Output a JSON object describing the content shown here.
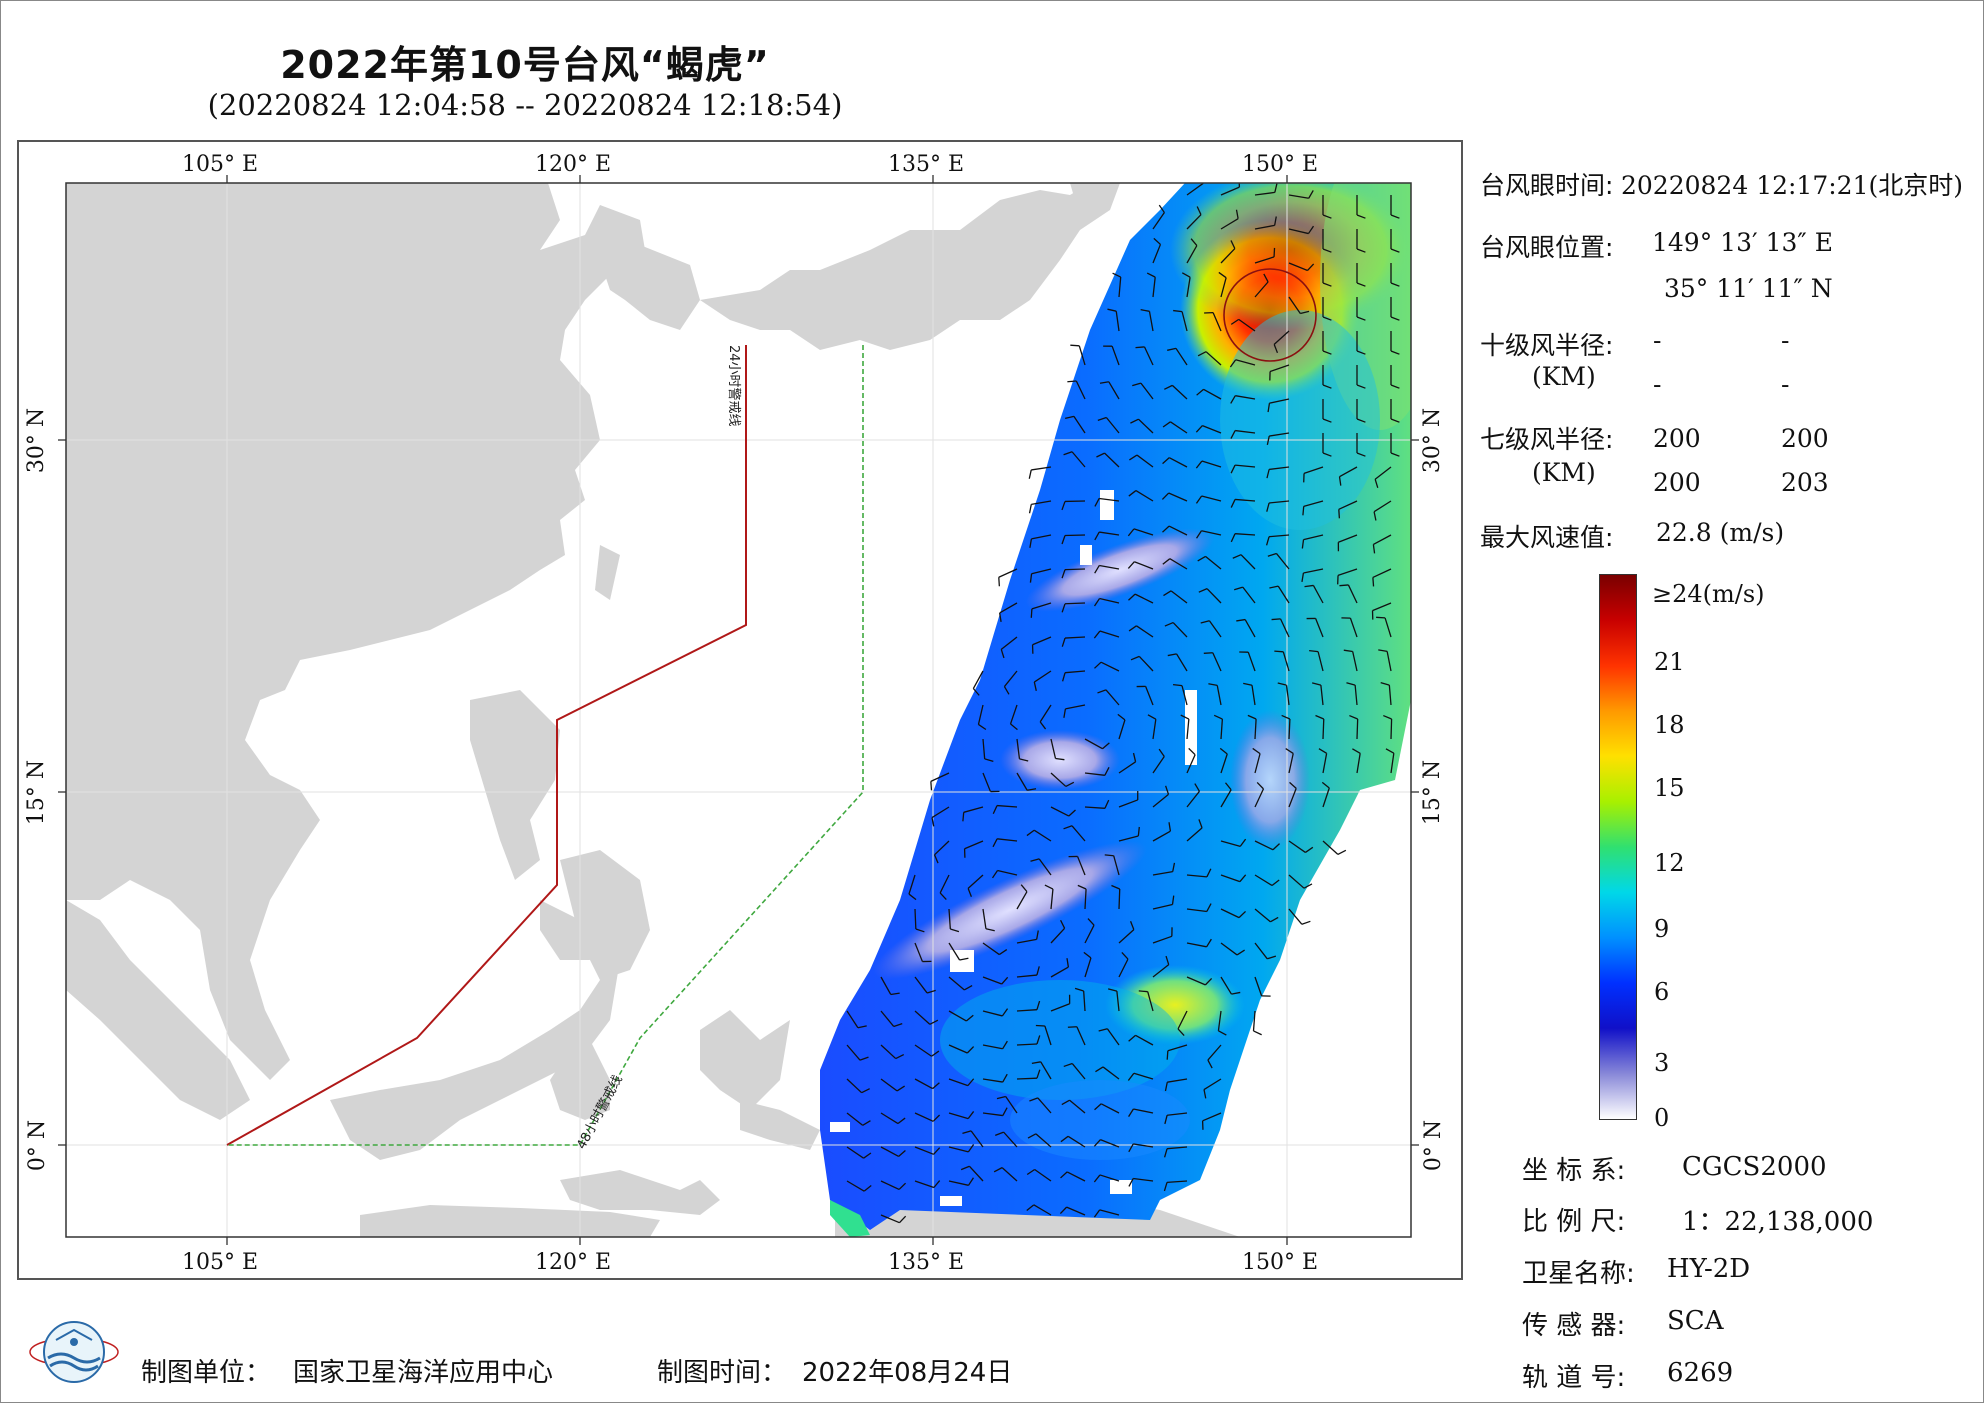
{
  "header": {
    "title": "2022年第10号台风“蝎虎”",
    "time_range": "(20220824 12:04:58 -- 20220824 12:18:54)"
  },
  "map": {
    "lon_labels": [
      "105° E",
      "120° E",
      "135° E",
      "150° E"
    ],
    "lat_labels": [
      "30° N",
      "15° N",
      "0° N"
    ],
    "warning_24h_label": "24小时警戒线",
    "warning_48h_label": "48小时警戒线",
    "colors": {
      "land": "#d4d4d4",
      "ocean": "#ffffff",
      "warning_24h": "#b01818",
      "warning_48h": "#3fa83f",
      "wind_barb": "#111111",
      "eye_circle": "#8a1010"
    }
  },
  "typhoon_info": {
    "eye_time_label": "台风眼时间:",
    "eye_time_value": "20220824 12:17:21(北京时)",
    "eye_position_label": "台风眼位置:",
    "eye_lon": "149° 13′ 13″ E",
    "eye_lat": "35° 11′ 11″ N",
    "r10_label": "十级风半径:",
    "r10_unit": "(KM)",
    "r10_values": [
      "-",
      "-",
      "-",
      "-"
    ],
    "r7_label": "七级风半径:",
    "r7_unit": "(KM)",
    "r7_values": [
      "200",
      "200",
      "200",
      "203"
    ],
    "max_wind_label": "最大风速值:",
    "max_wind_value": "22.8  (m/s)"
  },
  "colorbar": {
    "labels": [
      "≥24(m/s)",
      "21",
      "18",
      "15",
      "12",
      "9",
      "6",
      "3",
      "0"
    ],
    "stops": [
      "#7a0000",
      "#c80000",
      "#ff3300",
      "#ff9900",
      "#ffe000",
      "#a8f000",
      "#30e070",
      "#00d8e8",
      "#0090ff",
      "#0030ff",
      "#1010c8",
      "#8888d8",
      "#ffffff"
    ]
  },
  "meta": {
    "coord_label": "坐 标 系:",
    "coord_value": "CGCS2000",
    "scale_label": "比 例 尺:",
    "scale_value": "1：22,138,000",
    "satellite_label": "卫星名称:",
    "satellite_value": "HY-2D",
    "sensor_label": "传 感 器:",
    "sensor_value": "SCA",
    "orbit_label": "轨 道 号:",
    "orbit_value": "6269"
  },
  "footer": {
    "org_label": "制图单位：",
    "org_value": "国家卫星海洋应用中心",
    "date_label": "制图时间：",
    "date_value": "2022年08月24日"
  }
}
